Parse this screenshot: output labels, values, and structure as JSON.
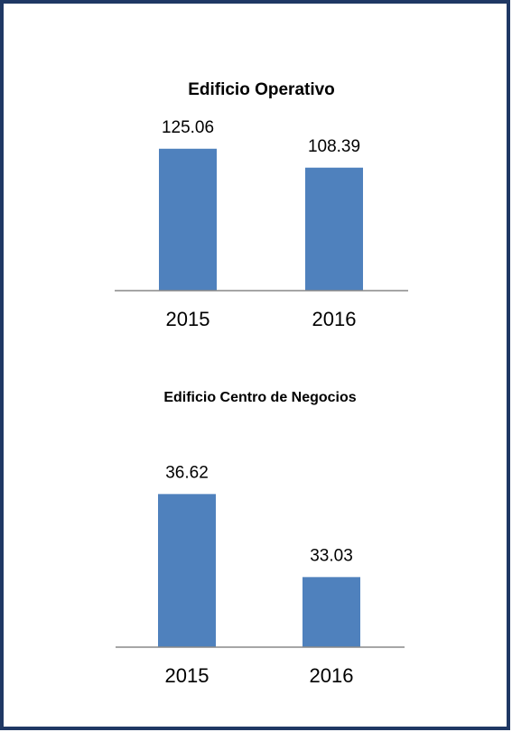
{
  "chart_data": [
    {
      "type": "bar",
      "title": "Edificio Operativo",
      "categories": [
        "2015",
        "2016"
      ],
      "values": [
        125.06,
        108.39
      ],
      "color": "#4f81bd",
      "ylim": [
        0,
        140
      ]
    },
    {
      "type": "bar",
      "title": "Edificio Centro de Negocios",
      "categories": [
        "2015",
        "2016"
      ],
      "values": [
        36.62,
        33.03
      ],
      "color": "#4f81bd",
      "ylim": [
        30,
        38
      ]
    }
  ]
}
